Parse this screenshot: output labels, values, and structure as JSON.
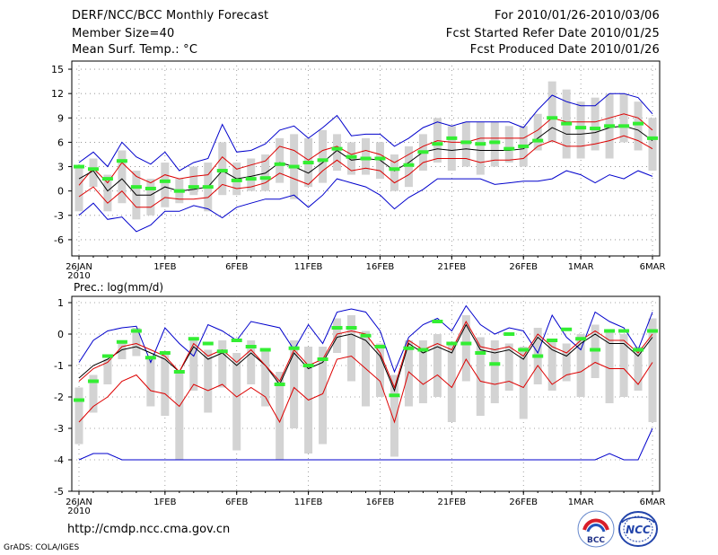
{
  "header": {
    "title": "DERF/NCC/BCC Monthly Forecast",
    "member_size": "Member Size=40",
    "variable": "Mean Surf. Temp.: °C",
    "forecast_period": "For 2010/01/26-2010/03/06",
    "start_date": "Fcst Started Refer Date 2010/01/25",
    "produced_date": "Fcst Produced Date 2010/01/26"
  },
  "footer": {
    "url": "http://cmdp.ncc.cma.gov.cn",
    "grads_credit": "GrADS: COLA/IGES",
    "logo_left_text": "BCC",
    "logo_right_text": "NCC"
  },
  "colors": {
    "envelope": "#0000cc",
    "spread": "#dd0000",
    "mean": "#000000",
    "box": "#d3d3d3",
    "observed": "#33ee33",
    "grid": "#888888"
  },
  "chart_data": [
    {
      "type": "line",
      "name": "temperature",
      "ylabel": "Mean Surf. Temp.: °C",
      "ylim": [
        -8,
        16
      ],
      "yticks": [
        -6,
        -3,
        0,
        3,
        6,
        9,
        12,
        15
      ],
      "ytick_labels": [
        "-6",
        "-3",
        "0",
        "3",
        "6",
        "9",
        "12",
        "15"
      ],
      "xticks": [
        0,
        6,
        11,
        16,
        21,
        26,
        31,
        35,
        40
      ],
      "xtick_labels": [
        "26JAN",
        "1FEB",
        "6FEB",
        "11FEB",
        "16FEB",
        "21FEB",
        "26FEB",
        "1MAR",
        "6MAR"
      ],
      "year_label": "2010",
      "days": 41,
      "series": [
        {
          "name": "ensemble-max",
          "color": "#0000cc",
          "values": [
            3.5,
            4.8,
            3.0,
            6.0,
            4.2,
            3.3,
            4.8,
            2.5,
            3.5,
            4.0,
            8.2,
            4.8,
            5.0,
            5.8,
            7.5,
            8.0,
            6.5,
            7.8,
            9.3,
            6.8,
            7.0,
            7.0,
            5.5,
            6.5,
            7.8,
            8.5,
            8.0,
            8.5,
            8.5,
            8.5,
            8.5,
            7.8,
            10.0,
            11.8,
            11.0,
            10.5,
            10.5,
            12.0,
            12.0,
            11.5,
            9.5
          ]
        },
        {
          "name": "spread-upper",
          "color": "#dd0000",
          "values": [
            0.7,
            2.8,
            1.0,
            3.5,
            1.8,
            1.0,
            2.0,
            1.5,
            1.8,
            2.0,
            4.2,
            2.7,
            3.2,
            3.7,
            5.5,
            5.0,
            3.8,
            5.0,
            5.5,
            4.5,
            5.0,
            4.5,
            3.5,
            4.5,
            5.5,
            6.2,
            6.0,
            6.0,
            6.5,
            6.5,
            6.5,
            6.5,
            7.5,
            9.0,
            8.5,
            8.5,
            8.5,
            9.0,
            9.5,
            9.0,
            7.5
          ]
        },
        {
          "name": "ensemble-mean",
          "color": "#000000",
          "values": [
            1.5,
            2.5,
            0.0,
            1.5,
            -0.5,
            -0.5,
            0.5,
            0.0,
            0.2,
            0.5,
            2.5,
            1.5,
            1.8,
            2.2,
            3.5,
            3.0,
            2.2,
            3.5,
            5.0,
            3.8,
            4.0,
            3.8,
            2.5,
            3.5,
            4.8,
            5.2,
            5.0,
            5.2,
            5.0,
            5.0,
            5.0,
            5.2,
            6.5,
            7.8,
            7.0,
            7.0,
            7.2,
            7.8,
            8.0,
            7.5,
            6.2
          ]
        },
        {
          "name": "spread-lower",
          "color": "#dd0000",
          "values": [
            -0.7,
            0.5,
            -1.5,
            0.0,
            -2.0,
            -2.0,
            -0.8,
            -1.0,
            -1.0,
            -0.8,
            0.8,
            0.3,
            0.5,
            1.0,
            2.2,
            1.5,
            0.8,
            2.5,
            3.8,
            2.5,
            2.8,
            2.5,
            1.0,
            2.0,
            3.5,
            4.0,
            4.0,
            4.0,
            3.5,
            3.8,
            3.8,
            4.0,
            5.5,
            6.2,
            5.5,
            5.5,
            5.8,
            6.2,
            6.8,
            6.2,
            5.2
          ]
        },
        {
          "name": "ensemble-min",
          "color": "#0000cc",
          "values": [
            -3.0,
            -1.5,
            -3.5,
            -3.2,
            -5.0,
            -4.2,
            -2.5,
            -2.5,
            -1.8,
            -2.2,
            -3.3,
            -2.0,
            -1.5,
            -1.0,
            -1.0,
            -0.5,
            -2.0,
            -0.5,
            1.5,
            1.0,
            0.5,
            -0.5,
            -2.2,
            -0.8,
            0.2,
            1.5,
            1.5,
            1.5,
            1.5,
            0.8,
            1.0,
            1.2,
            1.2,
            1.5,
            2.5,
            2.0,
            1.0,
            2.0,
            1.5,
            2.5,
            1.8
          ]
        }
      ],
      "box_low": [
        -2.5,
        0.5,
        -2.5,
        -1.5,
        -3.5,
        -3.0,
        -2.0,
        -1.5,
        -0.5,
        -2.5,
        -0.5,
        -0.5,
        0.0,
        0.0,
        1.0,
        -1.0,
        0.5,
        1.0,
        2.5,
        2.0,
        2.0,
        1.5,
        0.0,
        0.5,
        2.5,
        3.5,
        2.5,
        3.0,
        2.0,
        3.0,
        3.5,
        3.0,
        5.0,
        6.0,
        4.0,
        4.0,
        5.0,
        4.0,
        6.0,
        5.0,
        2.5
      ],
      "box_high": [
        3.0,
        4.0,
        2.0,
        5.0,
        2.5,
        1.5,
        3.5,
        1.5,
        3.0,
        3.5,
        6.0,
        3.5,
        4.0,
        4.5,
        6.5,
        7.0,
        6.5,
        7.5,
        7.0,
        6.0,
        6.5,
        6.0,
        4.5,
        5.5,
        7.0,
        9.0,
        8.0,
        8.5,
        8.5,
        8.5,
        8.0,
        8.0,
        9.5,
        13.5,
        12.5,
        11.0,
        11.5,
        12.0,
        12.0,
        11.0,
        9.0
      ],
      "observed": [
        3.0,
        2.7,
        1.5,
        3.7,
        0.5,
        0.3,
        1.2,
        0.0,
        0.5,
        0.5,
        2.5,
        1.3,
        1.5,
        1.6,
        3.3,
        3.0,
        3.5,
        3.8,
        5.2,
        4.2,
        4.0,
        4.0,
        2.7,
        3.2,
        4.8,
        5.8,
        6.5,
        6.0,
        5.8,
        6.0,
        5.2,
        5.5,
        6.2,
        9.0,
        8.3,
        7.8,
        7.7,
        8.0,
        8.0,
        8.3,
        6.5
      ]
    },
    {
      "type": "line",
      "name": "precipitation",
      "ylabel": "Prec.: log(mm/d)",
      "ylim": [
        -5,
        1.2
      ],
      "yticks": [
        -5,
        -4,
        -3,
        -2,
        -1,
        0,
        1
      ],
      "ytick_labels": [
        "-5",
        "-4",
        "-3",
        "-2",
        "-1",
        "0",
        "1"
      ],
      "xticks": [
        0,
        6,
        11,
        16,
        21,
        26,
        31,
        35,
        40
      ],
      "xtick_labels": [
        "26JAN",
        "1FEB",
        "6FEB",
        "11FEB",
        "16FEB",
        "21FEB",
        "26FEB",
        "1MAR",
        "6MAR"
      ],
      "year_label": "2010",
      "days": 41,
      "series": [
        {
          "name": "ensemble-max",
          "color": "#0000cc",
          "values": [
            -0.9,
            -0.2,
            0.1,
            0.2,
            0.25,
            -0.9,
            0.2,
            -0.3,
            -0.7,
            0.3,
            0.1,
            -0.2,
            0.4,
            0.3,
            0.2,
            -0.5,
            0.3,
            -0.3,
            0.7,
            0.8,
            0.7,
            0.1,
            -1.2,
            -0.1,
            0.3,
            0.5,
            0.1,
            0.9,
            0.3,
            0.0,
            0.2,
            0.1,
            -0.6,
            0.6,
            -0.1,
            -0.5,
            0.7,
            0.4,
            0.2,
            -0.5,
            0.7
          ]
        },
        {
          "name": "ensemble-mean",
          "color": "#000000",
          "values": [
            -1.4,
            -1.0,
            -0.8,
            -0.5,
            -0.4,
            -0.6,
            -0.8,
            -1.2,
            -0.4,
            -0.8,
            -0.6,
            -1.0,
            -0.6,
            -1.0,
            -1.6,
            -0.6,
            -1.1,
            -0.9,
            -0.1,
            0.0,
            -0.2,
            -0.7,
            -1.8,
            -0.3,
            -0.6,
            -0.4,
            -0.6,
            0.3,
            -0.5,
            -0.6,
            -0.5,
            -0.8,
            -0.1,
            -0.5,
            -0.7,
            -0.3,
            0.0,
            -0.3,
            -0.3,
            -0.7,
            -0.1
          ]
        },
        {
          "name": "spread-upper",
          "color": "#dd0000",
          "values": [
            -1.5,
            -1.1,
            -0.9,
            -0.4,
            -0.3,
            -0.5,
            -0.7,
            -1.2,
            -0.3,
            -0.7,
            -0.5,
            -0.9,
            -0.5,
            -1.0,
            -1.5,
            -0.5,
            -1.0,
            -0.8,
            0.0,
            0.1,
            0.0,
            -0.6,
            -1.7,
            -0.2,
            -0.5,
            -0.3,
            -0.5,
            0.4,
            -0.4,
            -0.5,
            -0.4,
            -0.7,
            0.0,
            -0.4,
            -0.6,
            -0.2,
            0.1,
            -0.2,
            -0.2,
            -0.6,
            0.0
          ]
        },
        {
          "name": "spread-lower",
          "color": "#dd0000",
          "values": [
            -2.8,
            -2.3,
            -2.0,
            -1.5,
            -1.3,
            -1.8,
            -1.9,
            -2.3,
            -1.6,
            -1.8,
            -1.6,
            -2.0,
            -1.7,
            -2.0,
            -2.8,
            -1.7,
            -2.1,
            -1.9,
            -0.8,
            -0.7,
            -1.1,
            -1.5,
            -2.8,
            -1.2,
            -1.6,
            -1.3,
            -1.7,
            -0.8,
            -1.5,
            -1.6,
            -1.5,
            -1.7,
            -1.0,
            -1.6,
            -1.3,
            -1.2,
            -0.9,
            -1.1,
            -1.1,
            -1.6,
            -0.9
          ]
        },
        {
          "name": "ensemble-min",
          "color": "#0000cc",
          "values": [
            -4.0,
            -3.8,
            -3.8,
            -4.0,
            -4.0,
            -4.0,
            -4.0,
            -4.0,
            -4.0,
            -4.0,
            -4.0,
            -4.0,
            -4.0,
            -4.0,
            -4.0,
            -4.0,
            -4.0,
            -4.0,
            -4.0,
            -4.0,
            -4.0,
            -4.0,
            -4.0,
            -4.0,
            -4.0,
            -4.0,
            -4.0,
            -4.0,
            -4.0,
            -4.0,
            -4.0,
            -4.0,
            -4.0,
            -4.0,
            -4.0,
            -4.0,
            -4.0,
            -3.8,
            -4.0,
            -4.0,
            -3.0
          ]
        }
      ],
      "box_low": [
        -3.5,
        -2.5,
        -1.6,
        -0.8,
        -0.7,
        -2.3,
        -2.6,
        -4.0,
        -1.8,
        -2.5,
        -1.7,
        -3.7,
        -1.6,
        -2.3,
        -4.0,
        -3.0,
        -3.8,
        -3.5,
        -0.6,
        -1.5,
        -2.3,
        -2.0,
        -3.9,
        -2.3,
        -2.2,
        -2.0,
        -2.8,
        -1.5,
        -2.6,
        -2.2,
        -1.8,
        -2.7,
        -1.6,
        -1.8,
        -1.5,
        -2.0,
        -1.4,
        -2.2,
        -2.0,
        -1.8,
        -2.8
      ],
      "box_high": [
        -1.7,
        -1.3,
        -0.8,
        -0.2,
        0.2,
        -0.8,
        -0.6,
        -1.2,
        -0.2,
        -0.5,
        -0.2,
        -0.6,
        -0.2,
        -0.5,
        -1.2,
        -0.2,
        -0.4,
        -0.4,
        0.5,
        0.6,
        0.1,
        -0.3,
        -1.3,
        -0.2,
        -0.2,
        0.0,
        -0.3,
        0.6,
        -0.1,
        -0.2,
        -0.3,
        -0.4,
        0.2,
        -0.2,
        -0.3,
        0.0,
        0.3,
        0.1,
        0.0,
        -0.4,
        0.5
      ],
      "observed": [
        -2.1,
        -1.5,
        -0.7,
        -0.25,
        0.1,
        -0.75,
        -0.6,
        -1.2,
        -0.15,
        -0.3,
        -0.55,
        -0.2,
        -0.4,
        -0.5,
        -1.6,
        -0.45,
        -1.0,
        -0.8,
        0.2,
        0.2,
        -0.05,
        -0.4,
        -1.95,
        -0.45,
        -0.5,
        0.4,
        -0.3,
        -0.3,
        -0.6,
        -0.95,
        0.0,
        -0.5,
        -0.7,
        -0.2,
        0.15,
        -0.15,
        -0.5,
        0.1,
        0.1,
        -0.5,
        0.1
      ]
    }
  ]
}
